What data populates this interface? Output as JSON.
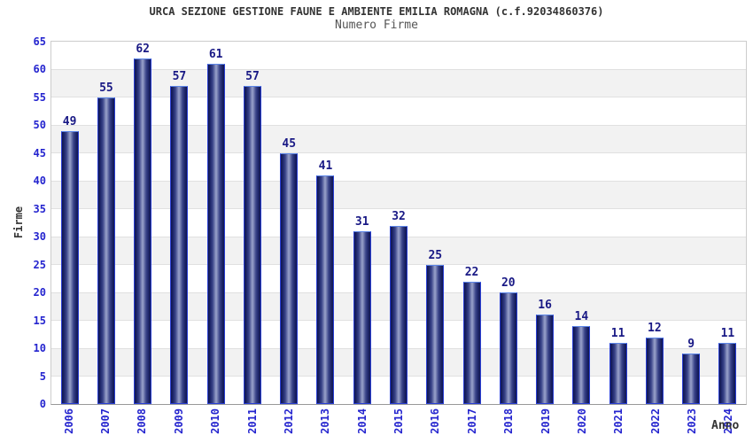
{
  "chart_data": {
    "type": "bar",
    "title": "URCA SEZIONE GESTIONE FAUNE E AMBIENTE EMILIA ROMAGNA (c.f.92034860376)",
    "subtitle": "Numero Firme",
    "xlabel": "Anno",
    "ylabel": "Firme",
    "categories": [
      "2006",
      "2007",
      "2008",
      "2009",
      "2010",
      "2011",
      "2012",
      "2013",
      "2014",
      "2015",
      "2016",
      "2017",
      "2018",
      "2019",
      "2020",
      "2021",
      "2022",
      "2023",
      "2024"
    ],
    "values": [
      49,
      55,
      62,
      57,
      61,
      57,
      45,
      41,
      31,
      32,
      25,
      22,
      20,
      16,
      14,
      11,
      12,
      9,
      11
    ],
    "ylim": [
      0,
      65
    ],
    "ytick_step": 5,
    "grid": "alternating horizontal bands, light lines every 5 units",
    "legend": "none",
    "colors": {
      "bar_dark": "#10164f",
      "bar_mid": "#3a4489",
      "bar_highlight": "#9aa3cb",
      "bar_outline": "#2a3fd4",
      "bar_top_edge": "#5c86e8",
      "value_label": "#191985",
      "tick_label": "#2525cf",
      "axis_title": "#333333",
      "title": "#333333",
      "subtitle": "#555555",
      "band_gray": "#f2f2f2",
      "grid_line": "#e0e0e0",
      "plot_border": "#cccccc",
      "baseline": "#999999",
      "background": "#ffffff"
    }
  }
}
